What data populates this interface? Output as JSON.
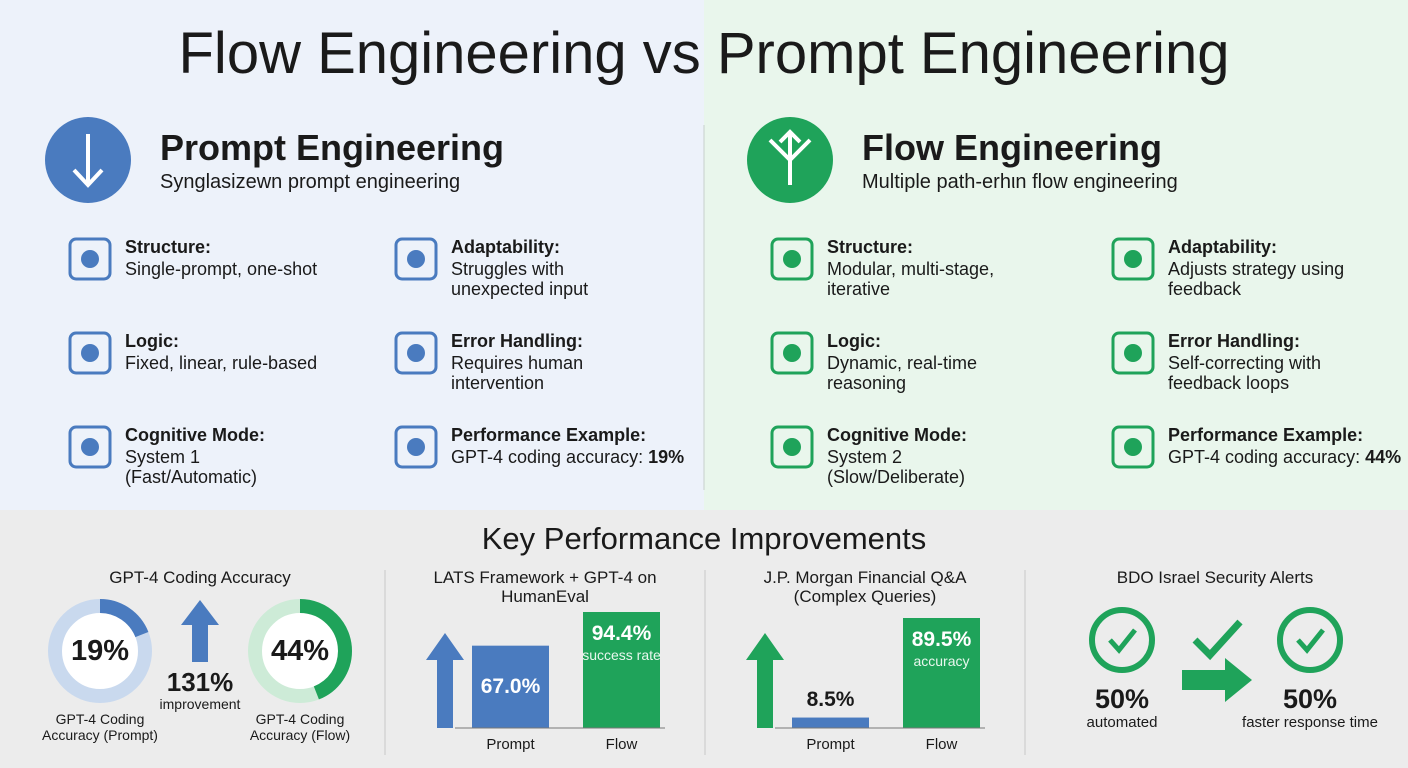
{
  "title": "Flow Engineering vs Prompt Engineering",
  "sides": [
    {
      "heading": "Prompt Engineering",
      "subtitle": "Synglasizewn prompt engineering",
      "color": "#4a7bbf",
      "items": [
        {
          "label": "Structure:",
          "text": "Single-prompt, one-shot"
        },
        {
          "label": "Adaptability:",
          "text": "Struggles with unexpected input"
        },
        {
          "label": "Logic:",
          "text": "Fixed, linear, rule-based"
        },
        {
          "label": "Error Handling:",
          "text": "Requires human intervention"
        },
        {
          "label": "Cognitive Mode:",
          "text": "System 1 (Fast/Automatic)"
        },
        {
          "label": "Performance Example:",
          "text": "GPT-4 coding accuracy:",
          "emphasis": "19%"
        }
      ]
    },
    {
      "heading": "Flow Engineering",
      "subtitle": "Multiple path-erhιn flow engineering",
      "color": "#1fa35a",
      "items": [
        {
          "label": "Structure:",
          "text": "Modular, multi-stage, iterative"
        },
        {
          "label": "Adaptability:",
          "text": "Adjusts strategy using feedback"
        },
        {
          "label": "Logic:",
          "text": "Dynamic, real-time reasoning"
        },
        {
          "label": "Error Handling:",
          "text": "Self-correcting with feedback loops"
        },
        {
          "label": "Cognitive Mode:",
          "text": "System 2 (Slow/Deliberate)"
        },
        {
          "label": "Performance Example:",
          "text": "GPT-4 coding accuracy:",
          "emphasis": "44%"
        }
      ]
    }
  ],
  "key_title": "Key Performance Improvements",
  "panels": [
    {
      "title": "GPT-4 Coding Accuracy",
      "donuts": [
        {
          "value": 19,
          "value_label": "19%",
          "caption": "GPT-4 Coding Accuracy (Prompt)"
        },
        {
          "value": 44,
          "value_label": "44%",
          "caption": "GPT-4 Coding Accuracy (Flow)"
        }
      ],
      "improvement": "131%",
      "improvement_label": "improvement"
    },
    {
      "title": "LATS Framework + GPT-4 on HumanEval",
      "categories": [
        "Prompt",
        "Flow"
      ],
      "values": [
        67.0,
        94.4
      ],
      "value_labels": [
        "67.0%",
        "94.4%"
      ],
      "notes": [
        null,
        "success rate"
      ]
    },
    {
      "title": "J.P. Morgan Financial Q&A (Complex Queries)",
      "categories": [
        "Prompt",
        "Flow"
      ],
      "values": [
        8.5,
        89.5
      ],
      "value_labels": [
        "8.5%",
        "89.5%"
      ],
      "notes": [
        null,
        "accuracy"
      ]
    },
    {
      "title": "BDO Israel Security Alerts",
      "stats": [
        {
          "value": "50%",
          "caption": "automated"
        },
        {
          "value": "50%",
          "caption": "faster response time"
        }
      ]
    }
  ]
}
